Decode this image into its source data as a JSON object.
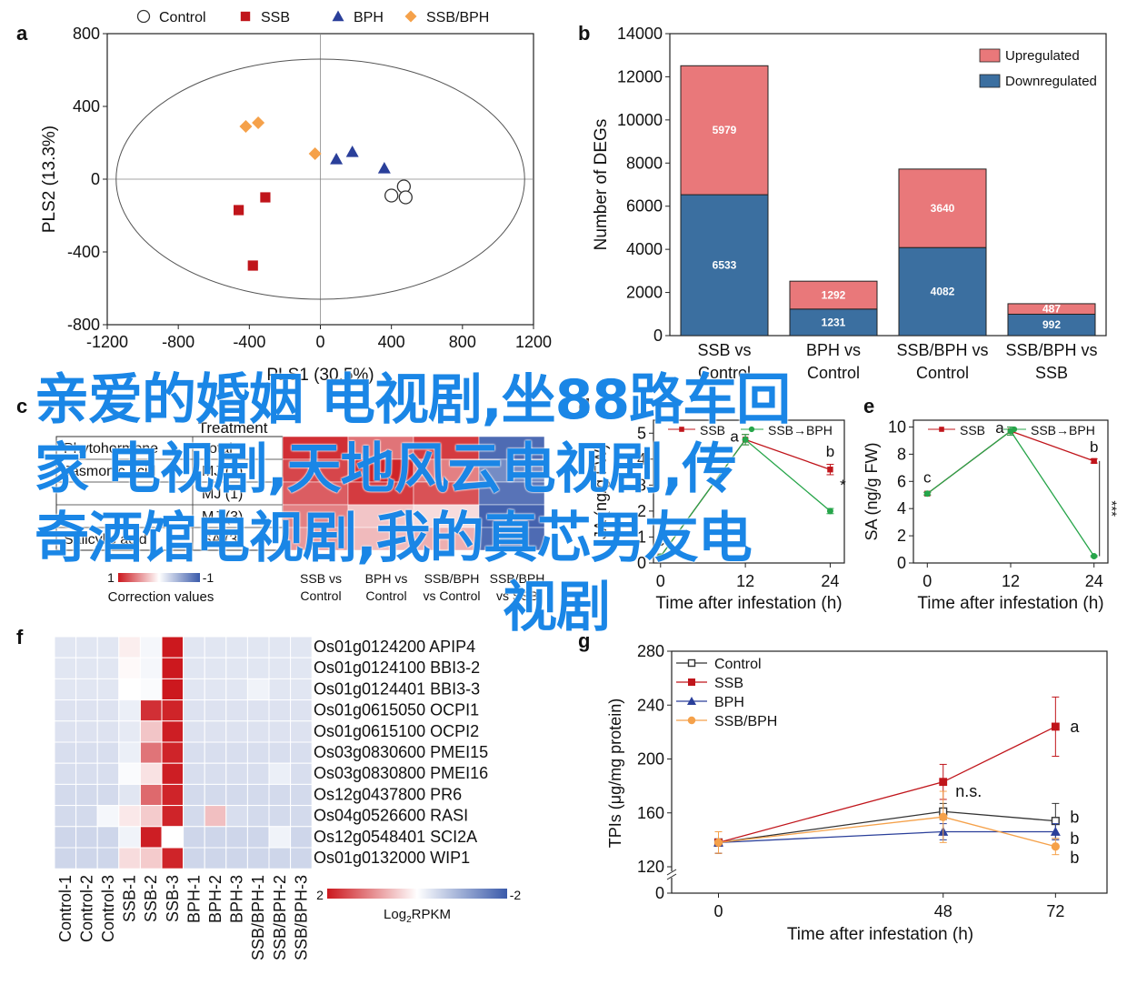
{
  "overlay": {
    "lines": [
      "亲爱的婚姻 电视剧,坐88路车回",
      "家 电视剧,天地风云电视剧,传",
      "奇酒馆电视剧,我的真芯男友电",
      "视剧"
    ]
  },
  "colors": {
    "control": "#333333",
    "ssb": "#c0151b",
    "bph": "#2a3f9a",
    "ssbbph": "#f5a14a",
    "up": "#e9787a",
    "down": "#3b6fa0",
    "ellipse": "#555555",
    "green": "#27a54a"
  },
  "chart_data": [
    {
      "panel": "a",
      "type": "scatter",
      "xlabel": "PLS1 (30.5%)",
      "ylabel": "PLS2 (13.3%)",
      "xlim": [
        -1200,
        1200
      ],
      "ylim": [
        -800,
        800
      ],
      "xticks": [
        -1200,
        -800,
        -400,
        0,
        400,
        800,
        1200
      ],
      "yticks": [
        -800,
        -400,
        0,
        400,
        800
      ],
      "legend_placement": "top",
      "series": [
        {
          "name": "Control",
          "marker": "circle-open",
          "points": [
            [
              470,
              -40
            ],
            [
              400,
              -90
            ],
            [
              480,
              -100
            ]
          ]
        },
        {
          "name": "SSB",
          "marker": "square",
          "points": [
            [
              -310,
              -100
            ],
            [
              -460,
              -170
            ],
            [
              -380,
              -475
            ]
          ]
        },
        {
          "name": "BPH",
          "marker": "triangle",
          "points": [
            [
              90,
              110
            ],
            [
              180,
              150
            ],
            [
              360,
              60
            ]
          ]
        },
        {
          "name": "SSB/BPH",
          "marker": "diamond",
          "points": [
            [
              -420,
              290
            ],
            [
              -350,
              310
            ],
            [
              -30,
              140
            ]
          ]
        }
      ]
    },
    {
      "panel": "b",
      "type": "bar",
      "stacked": true,
      "ylabel": "Number of DEGs",
      "ylim": [
        0,
        14000
      ],
      "yticks": [
        0,
        2000,
        4000,
        6000,
        8000,
        10000,
        12000,
        14000
      ],
      "categories": [
        [
          "SSB vs",
          "Control"
        ],
        [
          "BPH vs",
          "Control"
        ],
        [
          "SSB/BPH vs",
          "Control"
        ],
        [
          "SSB/BPH vs",
          "SSB"
        ]
      ],
      "series": [
        {
          "name": "Downregulated",
          "values": [
            6533,
            1231,
            4082,
            992
          ]
        },
        {
          "name": "Upregulated",
          "values": [
            5979,
            1292,
            3640,
            487
          ]
        }
      ],
      "legend_placement": "top-right"
    },
    {
      "panel": "c",
      "type": "heatmap",
      "header": "Treatment",
      "rows": [
        {
          "pathway": "Phytohormone",
          "level": "Total",
          "values": [
            0.9,
            0.6,
            0.85,
            -0.9
          ]
        },
        {
          "pathway": "Jasmonic acid",
          "level": "MJ (1)",
          "values": [
            0.8,
            0.95,
            0.55,
            -0.7
          ]
        },
        {
          "pathway": "",
          "level": "MJ (1)",
          "values": [
            0.7,
            0.85,
            0.75,
            -0.85
          ]
        },
        {
          "pathway": "",
          "level": "MJ (3)",
          "values": [
            0.55,
            0.25,
            0.15,
            -0.95
          ]
        },
        {
          "pathway": "Salicylic acid",
          "level": "SA (3)",
          "values": [
            0.45,
            0.3,
            0.35,
            -0.9
          ]
        }
      ],
      "columns": [
        [
          "SSB vs",
          "Control"
        ],
        [
          "BPH vs",
          "Control"
        ],
        [
          "SSB/BPH",
          "vs Control"
        ],
        [
          "SSB/BPH",
          "vs SSB"
        ]
      ],
      "scale": {
        "label": "Correction values",
        "min_label": "1",
        "max_label": "-1"
      }
    },
    {
      "panel": "d",
      "type": "line",
      "xlabel": "Time after infestation (h)",
      "ylabel": "JA (ng/g FW)",
      "xticks": [
        0,
        12,
        24
      ],
      "yticks": [
        0,
        1,
        2,
        3,
        4,
        5
      ],
      "xlim": [
        -1,
        26
      ],
      "ylim": [
        0,
        5.5
      ],
      "series": [
        {
          "name": "SSB",
          "x": [
            0,
            12,
            24
          ],
          "y": [
            0.25,
            4.75,
            3.6
          ],
          "err": [
            0.05,
            0.2,
            0.2
          ]
        },
        {
          "name": "SSB→BPH",
          "x": [
            0,
            12,
            24
          ],
          "y": [
            0.25,
            4.75,
            2.0
          ],
          "err": [
            0.05,
            0.2,
            0.1
          ]
        }
      ],
      "annotations": [
        {
          "x": 12,
          "text": "a"
        },
        {
          "x": 0,
          "text": "c"
        },
        {
          "x": 24,
          "text": "b"
        },
        {
          "x": 24,
          "text": "*"
        }
      ]
    },
    {
      "panel": "e",
      "type": "line",
      "xlabel": "Time after infestation (h)",
      "ylabel": "SA (ng/g FW)",
      "xticks": [
        0,
        12,
        24
      ],
      "yticks": [
        0,
        2,
        4,
        6,
        8,
        10
      ],
      "xlim": [
        -2,
        26
      ],
      "ylim": [
        0,
        10.5
      ],
      "series": [
        {
          "name": "SSB",
          "x": [
            0,
            12,
            24
          ],
          "y": [
            5.1,
            9.7,
            7.5
          ],
          "err": [
            0.1,
            0.3,
            0.15
          ]
        },
        {
          "name": "SSB→BPH",
          "x": [
            0,
            12,
            24
          ],
          "y": [
            5.1,
            9.7,
            0.5
          ],
          "err": [
            0.1,
            0.3,
            0.05
          ]
        }
      ],
      "annotations": [
        {
          "x": 0,
          "text": "c"
        },
        {
          "x": 12,
          "text": "a"
        },
        {
          "x": 24,
          "text": "b"
        },
        {
          "x": 24,
          "text": "***"
        }
      ]
    },
    {
      "panel": "f",
      "type": "heatmap",
      "columns": [
        "Control-1",
        "Control-2",
        "Control-3",
        "SSB-1",
        "SSB-2",
        "SSB-3",
        "BPH-1",
        "BPH-2",
        "BPH-3",
        "SSB/BPH-1",
        "SSB/BPH-2",
        "SSB/BPH-3"
      ],
      "rows": [
        {
          "gene": "Os01g0124200 APIP4",
          "values": [
            -0.3,
            -0.3,
            -0.3,
            0.15,
            -0.1,
            2.0,
            -0.3,
            -0.3,
            -0.3,
            -0.3,
            -0.3,
            -0.3
          ]
        },
        {
          "gene": "Os01g0124100 BBI3-2",
          "values": [
            -0.3,
            -0.3,
            -0.3,
            0.05,
            -0.1,
            2.0,
            -0.3,
            -0.3,
            -0.3,
            -0.3,
            -0.3,
            -0.3
          ]
        },
        {
          "gene": "Os01g0124401 BBI3-3",
          "values": [
            -0.3,
            -0.3,
            -0.3,
            0.0,
            -0.05,
            2.0,
            -0.3,
            -0.3,
            -0.3,
            -0.15,
            -0.3,
            -0.3
          ]
        },
        {
          "gene": "Os01g0615050 OCPI1",
          "values": [
            -0.35,
            -0.35,
            -0.35,
            -0.2,
            1.8,
            1.9,
            -0.35,
            -0.35,
            -0.35,
            -0.35,
            -0.35,
            -0.35
          ]
        },
        {
          "gene": "Os01g0615100 OCPI2",
          "values": [
            -0.35,
            -0.35,
            -0.35,
            -0.25,
            0.5,
            1.95,
            -0.35,
            -0.35,
            -0.35,
            -0.35,
            -0.35,
            -0.35
          ]
        },
        {
          "gene": "Os03g0830600 PMEI15",
          "values": [
            -0.4,
            -0.4,
            -0.4,
            -0.2,
            1.2,
            1.9,
            -0.4,
            -0.4,
            -0.4,
            -0.4,
            -0.4,
            -0.4
          ]
        },
        {
          "gene": "Os03g0830800 PMEI16",
          "values": [
            -0.4,
            -0.4,
            -0.4,
            -0.05,
            0.25,
            1.95,
            -0.4,
            -0.4,
            -0.4,
            -0.4,
            -0.2,
            -0.4
          ]
        },
        {
          "gene": "Os12g0437800 PR6",
          "values": [
            -0.45,
            -0.45,
            -0.45,
            -0.3,
            1.3,
            1.9,
            -0.45,
            -0.45,
            -0.45,
            -0.45,
            -0.45,
            -0.45
          ]
        },
        {
          "gene": "Os04g0526600 RASI",
          "values": [
            -0.45,
            -0.45,
            -0.1,
            0.2,
            0.45,
            1.9,
            -0.45,
            0.55,
            -0.4,
            -0.45,
            -0.45,
            -0.45
          ]
        },
        {
          "gene": "Os12g0548401 SCI2A",
          "values": [
            -0.5,
            -0.5,
            -0.5,
            -0.15,
            1.95,
            0.0,
            -0.5,
            -0.5,
            -0.5,
            -0.5,
            -0.15,
            -0.5
          ]
        },
        {
          "gene": "Os01g0132000 WIP1",
          "values": [
            -0.5,
            -0.5,
            -0.5,
            0.3,
            0.45,
            1.9,
            -0.5,
            -0.5,
            -0.5,
            -0.5,
            -0.5,
            -0.5
          ]
        }
      ],
      "scale": {
        "label_prefix": "Log",
        "label_sub": "2",
        "label_suffix": "RPKM",
        "min_label": "2",
        "max_label": "-2"
      }
    },
    {
      "panel": "g",
      "type": "line",
      "xlabel": "Time after infestation (h)",
      "ylabel": "TPIs (μg/mg protein)",
      "xticks": [
        0,
        48,
        72
      ],
      "yticks": [
        120,
        160,
        200,
        240,
        280
      ],
      "y_break_tick": 0,
      "xlim": [
        -10,
        83
      ],
      "ylim": [
        120,
        280
      ],
      "series": [
        {
          "name": "Control",
          "marker": "square-open",
          "x": [
            0,
            48,
            72
          ],
          "y": [
            138,
            161,
            154
          ],
          "err": [
            8,
            6,
            13
          ]
        },
        {
          "name": "SSB",
          "marker": "square",
          "x": [
            0,
            48,
            72
          ],
          "y": [
            138,
            183,
            224
          ],
          "err": [
            8,
            13,
            22
          ]
        },
        {
          "name": "BPH",
          "marker": "triangle",
          "x": [
            0,
            48,
            72
          ],
          "y": [
            138,
            146,
            146
          ],
          "err": [
            8,
            6,
            6
          ]
        },
        {
          "name": "SSB/BPH",
          "marker": "circle",
          "x": [
            0,
            48,
            72
          ],
          "y": [
            138,
            157,
            135
          ],
          "err": [
            8,
            19,
            6
          ]
        }
      ],
      "annotations": [
        {
          "x": 48,
          "text": "n.s."
        },
        {
          "x": 72,
          "text": "a"
        },
        {
          "x": 72,
          "text": "b"
        },
        {
          "x": 72,
          "text": "b"
        },
        {
          "x": 72,
          "text": "b"
        }
      ],
      "legend_placement": "top-left"
    }
  ],
  "panel_labels": [
    "a",
    "b",
    "c",
    "d",
    "e",
    "f",
    "g"
  ]
}
